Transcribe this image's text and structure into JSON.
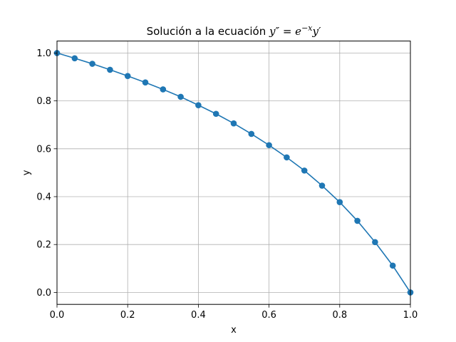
{
  "chart_data": {
    "type": "line",
    "title_prefix": "Solución a la ecuación ",
    "title_math": {
      "lhs": "y″",
      "eq": " = ",
      "base": "e",
      "exponent": "−x",
      "rhs": "y′"
    },
    "xlabel": "x",
    "ylabel": "y",
    "xlim": [
      0,
      1
    ],
    "ylim": [
      -0.05,
      1.05
    ],
    "xticks": [
      "0.0",
      "0.2",
      "0.4",
      "0.6",
      "0.8",
      "1.0"
    ],
    "yticks": [
      "0.0",
      "0.2",
      "0.4",
      "0.6",
      "0.8",
      "1.0"
    ],
    "grid": true,
    "markers": "circle",
    "series": [
      {
        "color": "#1f77b4",
        "x": [
          0.0,
          0.05,
          0.1,
          0.15,
          0.2,
          0.25,
          0.3,
          0.35,
          0.4,
          0.45,
          0.5,
          0.55,
          0.6,
          0.65,
          0.7,
          0.75,
          0.8,
          0.85,
          0.9,
          0.95,
          1.0
        ],
        "y": [
          1.0,
          0.978,
          0.955,
          0.93,
          0.904,
          0.877,
          0.848,
          0.817,
          0.782,
          0.746,
          0.706,
          0.662,
          0.615,
          0.564,
          0.509,
          0.446,
          0.377,
          0.299,
          0.21,
          0.112,
          0.0
        ]
      }
    ]
  }
}
